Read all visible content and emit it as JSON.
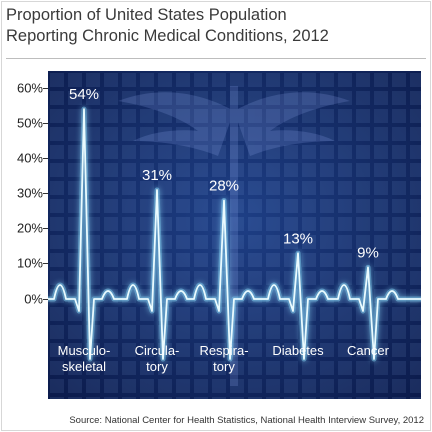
{
  "title_lines": [
    "Proportion of United States Population",
    "Reporting Chronic Medical Conditions, 2012"
  ],
  "source": "Source: National Center for Health Statistics, National Health Interview Survey, 2012",
  "colors": {
    "background_dark": "#0b1a4a",
    "background_mid": "#1e3f86",
    "line_glow": "#8fe1ff",
    "line_core": "#e9fbff",
    "label_text": "#ffffff"
  },
  "chart_data": {
    "type": "bar",
    "title": "Proportion of United States Population Reporting Chronic Medical Conditions, 2012",
    "xlabel": "",
    "ylabel": "",
    "ylim": [
      0,
      60
    ],
    "yticks": [
      "0%",
      "10%",
      "20%",
      "30%",
      "40%",
      "50%",
      "60%"
    ],
    "categories": [
      {
        "label_lines": [
          "Musculo-",
          "skeletal"
        ],
        "value": 54,
        "value_label": "54%"
      },
      {
        "label_lines": [
          "Circula-",
          "tory"
        ],
        "value": 31,
        "value_label": "31%"
      },
      {
        "label_lines": [
          "Respira-",
          "tory"
        ],
        "value": 28,
        "value_label": "28%"
      },
      {
        "label_lines": [
          "Diabetes"
        ],
        "value": 13,
        "value_label": "13%"
      },
      {
        "label_lines": [
          "Cancer"
        ],
        "value": 9,
        "value_label": "9%"
      }
    ]
  }
}
